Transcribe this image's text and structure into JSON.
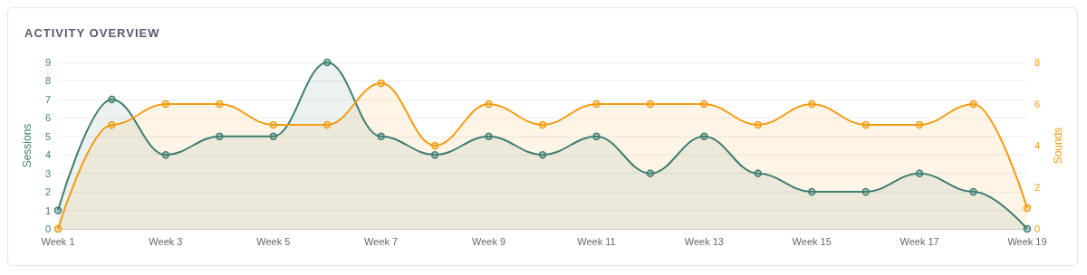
{
  "chart_data": {
    "type": "area",
    "title": "ACTIVITY OVERVIEW",
    "ylabel": "Sessions",
    "y2label": "Sounds",
    "categories": [
      "Week 1",
      null,
      "Week 3",
      null,
      "Week 5",
      null,
      "Week 7",
      null,
      "Week 9",
      null,
      "Week 11",
      null,
      "Week 13",
      null,
      "Week 15",
      null,
      "Week 17",
      null,
      "Week 19"
    ],
    "series": [
      {
        "name": null,
        "color": "#3f7d72",
        "values": [
          1,
          7,
          4,
          5,
          5,
          9,
          5,
          4,
          5,
          4,
          5,
          3,
          5,
          3,
          2,
          2,
          3,
          2,
          0
        ]
      },
      {
        "name": null,
        "color": "#f39c12",
        "axis": "y2",
        "values": [
          0,
          5,
          6,
          6,
          5,
          5,
          7,
          4,
          6,
          5,
          6,
          6,
          6,
          5,
          6,
          5,
          5,
          6,
          1
        ]
      }
    ],
    "ylim": [
      0,
      9
    ],
    "yticks": [
      0,
      1,
      2,
      3,
      4,
      5,
      6,
      7,
      8,
      9
    ],
    "y2lim": [
      0,
      8
    ],
    "y2ticks": [
      0,
      2,
      4,
      6,
      8
    ],
    "grid": "y",
    "marker": "circle",
    "line_style": "solid"
  }
}
